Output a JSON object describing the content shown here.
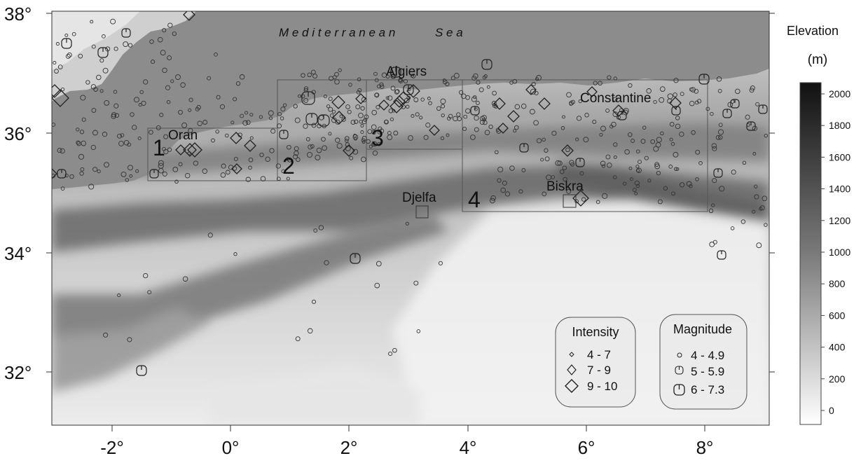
{
  "map": {
    "sea_label": "M e d i t e r r a n e a n            S e a",
    "y_ticks": [
      "38°",
      "36°",
      "34°",
      "32°"
    ],
    "x_ticks": [
      "-2°",
      "0°",
      "2°",
      "4°",
      "6°",
      "8°"
    ],
    "cities": [
      {
        "name": "Oran"
      },
      {
        "name": "Algiers"
      },
      {
        "name": "Constantine"
      },
      {
        "name": "Djelfa"
      },
      {
        "name": "Biskra"
      }
    ],
    "zones": [
      "1",
      "2",
      "3",
      "4"
    ]
  },
  "colorbar": {
    "title_line1": "Elevation",
    "title_line2": "(m)",
    "ticks": [
      "2000",
      "1800",
      "1600",
      "1400",
      "1200",
      "1000",
      "800",
      "600",
      "400",
      "200",
      "0"
    ]
  },
  "legend_intensity": {
    "title": "Intensity",
    "items": [
      "4  -  7",
      "7  -  9",
      "9  -  10"
    ]
  },
  "legend_magnitude": {
    "title": "Magnitude",
    "items": [
      "4 - 4.9",
      "5 - 5.9",
      "6 - 7.3"
    ]
  }
}
